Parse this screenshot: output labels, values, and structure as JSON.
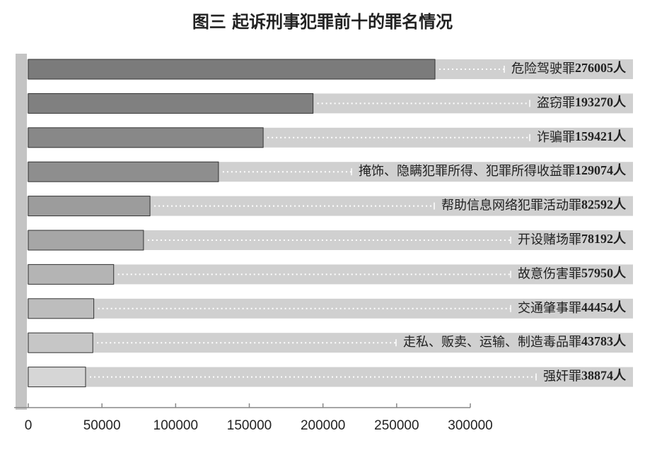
{
  "chart_data": {
    "type": "bar",
    "orientation": "horizontal",
    "title": "图三 起诉刑事犯罪前十的罪名情况",
    "categories": [
      "危险驾驶罪",
      "盗窃罪",
      "诈骗罪",
      "掩饰、隐瞒犯罪所得、犯罪所得收益罪",
      "帮助信息网络犯罪活动罪",
      "开设赌场罪",
      "故意伤害罪",
      "交通肇事罪",
      "走私、贩卖、运输、制造毒品罪",
      "强奸罪"
    ],
    "values": [
      276005,
      193270,
      159421,
      129074,
      82592,
      78192,
      57950,
      44454,
      43783,
      38874
    ],
    "value_labels": [
      "276005人",
      "193270人",
      "159421人",
      "129074人",
      "82592人",
      "78192人",
      "57950人",
      "44454人",
      "43783人",
      "38874人"
    ],
    "colors": [
      "#7b7b7b",
      "#808080",
      "#888888",
      "#8e8e8e",
      "#9c9c9c",
      "#a6a6a6",
      "#b4b4b4",
      "#bdbdbd",
      "#c6c6c6",
      "#d6d6d6"
    ],
    "xlim": [
      0,
      300000
    ],
    "xticks": [
      0,
      50000,
      100000,
      150000,
      200000,
      250000,
      300000
    ]
  }
}
